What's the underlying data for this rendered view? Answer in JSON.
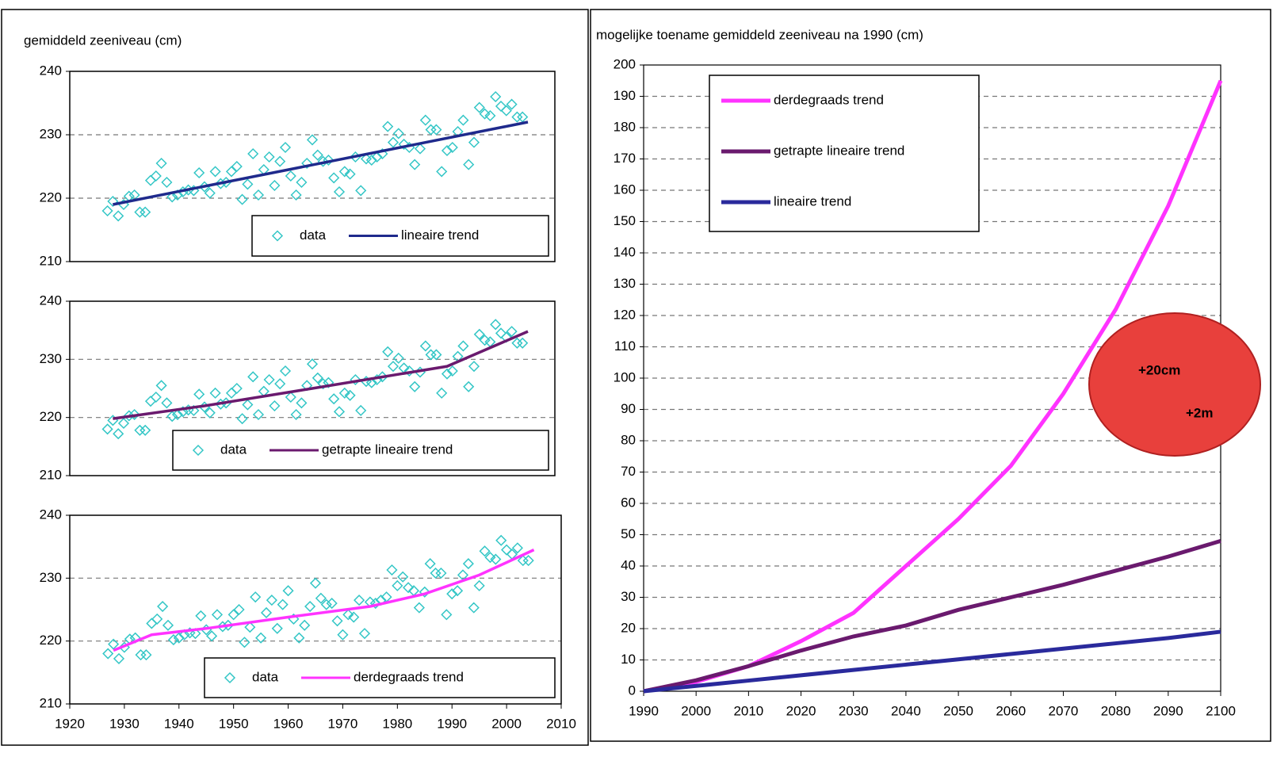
{
  "chart_data": [
    {
      "type": "scatter",
      "title": "gemiddeld zeeniveau (cm)",
      "xlim": [
        1920,
        2010
      ],
      "ylim": [
        210,
        240
      ],
      "yticks": [
        210,
        220,
        230,
        240
      ],
      "grid": true,
      "series": [
        {
          "name": "data",
          "type": "scatter",
          "color": "#33c6c6",
          "x": [
            1927,
            1928,
            1929,
            1930,
            1931,
            1932,
            1933,
            1934,
            1935,
            1936,
            1937,
            1938,
            1939,
            1940,
            1941,
            1942,
            1943,
            1944,
            1945,
            1946,
            1947,
            1948,
            1949,
            1950,
            1951,
            1952,
            1953,
            1954,
            1955,
            1956,
            1957,
            1958,
            1959,
            1960,
            1961,
            1962,
            1963,
            1964,
            1965,
            1966,
            1967,
            1968,
            1969,
            1970,
            1971,
            1972,
            1973,
            1974,
            1975,
            1976,
            1977,
            1978,
            1979,
            1980,
            1981,
            1982,
            1983,
            1984,
            1985,
            1986,
            1987,
            1988,
            1989,
            1990,
            1991,
            1992,
            1993,
            1994,
            1995,
            1996,
            1997,
            1998,
            1999,
            2000,
            2001,
            2002,
            2003,
            2004
          ],
          "values": [
            218,
            219.5,
            217.2,
            219,
            220.3,
            220.5,
            217.8,
            217.8,
            222.8,
            223.5,
            225.5,
            222.5,
            220.2,
            220.5,
            221,
            221.3,
            221.2,
            224,
            221.8,
            220.8,
            224.2,
            222.3,
            222.5,
            224.2,
            225,
            219.8,
            222.2,
            227,
            220.5,
            224.5,
            226.5,
            222,
            225.8,
            228,
            223.5,
            220.5,
            222.5,
            225.5,
            229.2,
            226.8,
            225.8,
            226,
            223.2,
            221,
            224.2,
            223.8,
            226.5,
            221.2,
            226.2,
            226,
            226.5,
            227,
            231.3,
            228.8,
            230.2,
            228.5,
            228,
            225.3,
            227.8,
            232.3,
            230.8,
            230.8,
            224.2,
            227.5,
            228,
            230.5,
            232.3,
            225.3,
            228.8,
            234.3,
            233.3,
            233,
            236,
            234.5,
            233.8,
            234.8,
            232.8,
            232.8
          ]
        },
        {
          "name": "lineaire trend",
          "type": "line",
          "color": "#1f2a8c",
          "x": [
            1928,
            2005
          ],
          "values": [
            219,
            232
          ]
        }
      ]
    },
    {
      "type": "scatter",
      "xlim": [
        1920,
        2010
      ],
      "ylim": [
        210,
        240
      ],
      "yticks": [
        210,
        220,
        230,
        240
      ],
      "grid": true,
      "series": [
        {
          "name": "data",
          "type": "scatter",
          "color": "#33c6c6",
          "x": [
            1927,
            1928,
            1929,
            1930,
            1931,
            1932,
            1933,
            1934,
            1935,
            1936,
            1937,
            1938,
            1939,
            1940,
            1941,
            1942,
            1943,
            1944,
            1945,
            1946,
            1947,
            1948,
            1949,
            1950,
            1951,
            1952,
            1953,
            1954,
            1955,
            1956,
            1957,
            1958,
            1959,
            1960,
            1961,
            1962,
            1963,
            1964,
            1965,
            1966,
            1967,
            1968,
            1969,
            1970,
            1971,
            1972,
            1973,
            1974,
            1975,
            1976,
            1977,
            1978,
            1979,
            1980,
            1981,
            1982,
            1983,
            1984,
            1985,
            1986,
            1987,
            1988,
            1989,
            1990,
            1991,
            1992,
            1993,
            1994,
            1995,
            1996,
            1997,
            1998,
            1999,
            2000,
            2001,
            2002,
            2003,
            2004
          ],
          "values": [
            218,
            219.5,
            217.2,
            219,
            220.3,
            220.5,
            217.8,
            217.8,
            222.8,
            223.5,
            225.5,
            222.5,
            220.2,
            220.5,
            221,
            221.3,
            221.2,
            224,
            221.8,
            220.8,
            224.2,
            222.3,
            222.5,
            224.2,
            225,
            219.8,
            222.2,
            227,
            220.5,
            224.5,
            226.5,
            222,
            225.8,
            228,
            223.5,
            220.5,
            222.5,
            225.5,
            229.2,
            226.8,
            225.8,
            226,
            223.2,
            221,
            224.2,
            223.8,
            226.5,
            221.2,
            226.2,
            226,
            226.5,
            227,
            231.3,
            228.8,
            230.2,
            228.5,
            228,
            225.3,
            227.8,
            232.3,
            230.8,
            230.8,
            224.2,
            227.5,
            228,
            230.5,
            232.3,
            225.3,
            228.8,
            234.3,
            233.3,
            233,
            236,
            234.5,
            233.8,
            234.8,
            232.8,
            232.8
          ]
        },
        {
          "name": "getrapte lineaire trend",
          "type": "line",
          "color": "#6a1a6e",
          "x": [
            1928,
            1945,
            1965,
            1990,
            2005
          ],
          "values": [
            219.8,
            222,
            225,
            228.8,
            234.8
          ]
        }
      ]
    },
    {
      "type": "scatter",
      "xlim": [
        1920,
        2010
      ],
      "ylim": [
        210,
        240
      ],
      "yticks": [
        210,
        220,
        230,
        240
      ],
      "xticks": [
        1920,
        1930,
        1940,
        1950,
        1960,
        1970,
        1980,
        1990,
        2000,
        2010
      ],
      "grid": true,
      "series": [
        {
          "name": "data",
          "type": "scatter",
          "color": "#33c6c6",
          "x": [
            1927,
            1928,
            1929,
            1930,
            1931,
            1932,
            1933,
            1934,
            1935,
            1936,
            1937,
            1938,
            1939,
            1940,
            1941,
            1942,
            1943,
            1944,
            1945,
            1946,
            1947,
            1948,
            1949,
            1950,
            1951,
            1952,
            1953,
            1954,
            1955,
            1956,
            1957,
            1958,
            1959,
            1960,
            1961,
            1962,
            1963,
            1964,
            1965,
            1966,
            1967,
            1968,
            1969,
            1970,
            1971,
            1972,
            1973,
            1974,
            1975,
            1976,
            1977,
            1978,
            1979,
            1980,
            1981,
            1982,
            1983,
            1984,
            1985,
            1986,
            1987,
            1988,
            1989,
            1990,
            1991,
            1992,
            1993,
            1994,
            1995,
            1996,
            1997,
            1998,
            1999,
            2000,
            2001,
            2002,
            2003,
            2004
          ],
          "values": [
            218,
            219.5,
            217.2,
            219,
            220.3,
            220.5,
            217.8,
            217.8,
            222.8,
            223.5,
            225.5,
            222.5,
            220.2,
            220.5,
            221,
            221.3,
            221.2,
            224,
            221.8,
            220.8,
            224.2,
            222.3,
            222.5,
            224.2,
            225,
            219.8,
            222.2,
            227,
            220.5,
            224.5,
            226.5,
            222,
            225.8,
            228,
            223.5,
            220.5,
            222.5,
            225.5,
            229.2,
            226.8,
            225.8,
            226,
            223.2,
            221,
            224.2,
            223.8,
            226.5,
            221.2,
            226.2,
            226,
            226.5,
            227,
            231.3,
            228.8,
            230.2,
            228.5,
            228,
            225.3,
            227.8,
            232.3,
            230.8,
            230.8,
            224.2,
            227.5,
            228,
            230.5,
            232.3,
            225.3,
            228.8,
            234.3,
            233.3,
            233,
            236,
            234.5,
            233.8,
            234.8,
            232.8,
            232.8
          ]
        },
        {
          "name": "derdegraads trend",
          "type": "line",
          "color": "#ff33ff",
          "x": [
            1928,
            1935,
            1945,
            1960,
            1975,
            1985,
            1995,
            2005
          ],
          "values": [
            218.5,
            221,
            222,
            223.8,
            225.5,
            227.5,
            230.5,
            234.5
          ]
        }
      ]
    },
    {
      "type": "line",
      "title": "mogelijke toename gemiddeld zeeniveau na 1990 (cm)",
      "xlim": [
        1990,
        2100
      ],
      "ylim": [
        0,
        200
      ],
      "xticks": [
        1990,
        2000,
        2010,
        2020,
        2030,
        2040,
        2050,
        2060,
        2070,
        2080,
        2090,
        2100
      ],
      "yticks": [
        0,
        10,
        20,
        30,
        40,
        50,
        60,
        70,
        80,
        90,
        100,
        110,
        120,
        130,
        140,
        150,
        160,
        170,
        180,
        190,
        200
      ],
      "grid": true,
      "series": [
        {
          "name": "derdegraads trend",
          "type": "line",
          "color": "#ff33ff",
          "x": [
            1990,
            2000,
            2010,
            2020,
            2030,
            2040,
            2050,
            2060,
            2070,
            2080,
            2090,
            2100
          ],
          "values": [
            0,
            3,
            8,
            16,
            25,
            40,
            55,
            72,
            95,
            122,
            155,
            195
          ]
        },
        {
          "name": "getrapte lineaire trend",
          "type": "line",
          "color": "#6a1a6e",
          "x": [
            1990,
            2000,
            2010,
            2020,
            2030,
            2040,
            2050,
            2060,
            2070,
            2080,
            2090,
            2100
          ],
          "values": [
            0,
            3.5,
            8,
            13,
            17.5,
            21,
            26,
            30,
            34,
            38.5,
            43,
            48
          ]
        },
        {
          "name": "lineaire trend",
          "type": "line",
          "color": "#2a2a9c",
          "x": [
            1990,
            2000,
            2010,
            2020,
            2030,
            2040,
            2050,
            2060,
            2070,
            2080,
            2090,
            2100
          ],
          "values": [
            0,
            1.7,
            3.4,
            5.1,
            6.8,
            8.5,
            10.2,
            11.9,
            13.6,
            15.3,
            17,
            19
          ]
        }
      ],
      "annotations": [
        "+20cm",
        "+2m"
      ],
      "annotation_color": "#e8403c"
    }
  ]
}
